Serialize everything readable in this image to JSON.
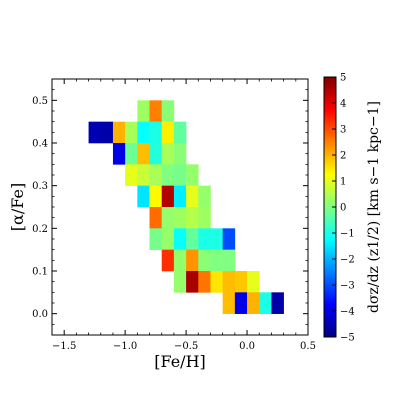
{
  "chart_data": {
    "type": "heatmap",
    "xlabel": "[Fe/H]",
    "ylabel": "[α/Fe]",
    "xlim": [
      -1.6,
      0.5
    ],
    "ylim": [
      -0.05,
      0.55
    ],
    "x_bin_width": 0.1,
    "y_bin_width": 0.05,
    "xticks": [
      -1.5,
      -1.0,
      -0.5,
      0.0,
      0.5
    ],
    "xtick_labels": [
      "−1.5",
      "−1.0",
      "−0.5",
      "0.0",
      "0.5"
    ],
    "yticks": [
      0.0,
      0.1,
      0.2,
      0.3,
      0.4,
      0.5
    ],
    "ytick_labels": [
      "0.0",
      "0.1",
      "0.2",
      "0.3",
      "0.4",
      "0.5"
    ],
    "colorbar": {
      "label": "dσz/dz (z1/2) [km s−1 kpc−1]",
      "range": [
        -5,
        5
      ],
      "ticks": [
        -5,
        -4,
        -3,
        -2,
        -1,
        0,
        1,
        2,
        3,
        4,
        5
      ],
      "tick_labels": [
        "−5",
        "−4",
        "−3",
        "−2",
        "−1",
        "0",
        "1",
        "2",
        "3",
        "4",
        "5"
      ],
      "colormap": "jet"
    },
    "cells": [
      {
        "feh": -0.85,
        "alpha": 0.475,
        "value": 0.3
      },
      {
        "feh": -0.75,
        "alpha": 0.475,
        "value": 2.5
      },
      {
        "feh": -0.65,
        "alpha": 0.475,
        "value": 0.1
      },
      {
        "feh": -1.25,
        "alpha": 0.425,
        "value": -4.5
      },
      {
        "feh": -1.15,
        "alpha": 0.425,
        "value": -4.6
      },
      {
        "feh": -1.05,
        "alpha": 0.425,
        "value": 2.0
      },
      {
        "feh": -0.95,
        "alpha": 0.425,
        "value": 0.4
      },
      {
        "feh": -0.85,
        "alpha": 0.425,
        "value": -1.2
      },
      {
        "feh": -0.75,
        "alpha": 0.425,
        "value": -1.0
      },
      {
        "feh": -0.65,
        "alpha": 0.425,
        "value": 1.4
      },
      {
        "feh": -0.55,
        "alpha": 0.425,
        "value": -0.3
      },
      {
        "feh": -1.05,
        "alpha": 0.375,
        "value": -4.0
      },
      {
        "feh": -0.95,
        "alpha": 0.375,
        "value": -0.2
      },
      {
        "feh": -0.85,
        "alpha": 0.375,
        "value": 1.9
      },
      {
        "feh": -0.75,
        "alpha": 0.375,
        "value": -0.9
      },
      {
        "feh": -0.65,
        "alpha": 0.375,
        "value": 0.4
      },
      {
        "feh": -0.55,
        "alpha": 0.375,
        "value": 0.1
      },
      {
        "feh": -0.95,
        "alpha": 0.325,
        "value": 1.0
      },
      {
        "feh": -0.85,
        "alpha": 0.325,
        "value": 0.7
      },
      {
        "feh": -0.75,
        "alpha": 0.325,
        "value": 0.4
      },
      {
        "feh": -0.65,
        "alpha": 0.325,
        "value": 0.0
      },
      {
        "feh": -0.55,
        "alpha": 0.325,
        "value": -0.1
      },
      {
        "feh": -0.45,
        "alpha": 0.325,
        "value": 0.2
      },
      {
        "feh": -0.85,
        "alpha": 0.275,
        "value": -1.5
      },
      {
        "feh": -0.75,
        "alpha": 0.275,
        "value": 1.3
      },
      {
        "feh": -0.65,
        "alpha": 0.275,
        "value": 4.5
      },
      {
        "feh": -0.55,
        "alpha": 0.275,
        "value": -1.4
      },
      {
        "feh": -0.45,
        "alpha": 0.275,
        "value": 1.0
      },
      {
        "feh": -0.35,
        "alpha": 0.275,
        "value": 0.2
      },
      {
        "feh": -0.75,
        "alpha": 0.225,
        "value": 2.7
      },
      {
        "feh": -0.65,
        "alpha": 0.225,
        "value": 0.2
      },
      {
        "feh": -0.55,
        "alpha": 0.225,
        "value": 0.3
      },
      {
        "feh": -0.45,
        "alpha": 0.225,
        "value": 0.5
      },
      {
        "feh": -0.35,
        "alpha": 0.225,
        "value": 0.3
      },
      {
        "feh": -0.75,
        "alpha": 0.175,
        "value": -0.1
      },
      {
        "feh": -0.65,
        "alpha": 0.175,
        "value": 0.2
      },
      {
        "feh": -0.55,
        "alpha": 0.175,
        "value": -1.2
      },
      {
        "feh": -0.45,
        "alpha": 0.175,
        "value": -0.3
      },
      {
        "feh": -0.35,
        "alpha": 0.175,
        "value": -1.0
      },
      {
        "feh": -0.25,
        "alpha": 0.175,
        "value": -1.0
      },
      {
        "feh": -0.15,
        "alpha": 0.175,
        "value": -3.0
      },
      {
        "feh": -0.65,
        "alpha": 0.125,
        "value": 3.3
      },
      {
        "feh": -0.55,
        "alpha": 0.125,
        "value": 0.2
      },
      {
        "feh": -0.45,
        "alpha": 0.125,
        "value": 2.3
      },
      {
        "feh": -0.35,
        "alpha": 0.125,
        "value": 0.1
      },
      {
        "feh": -0.25,
        "alpha": 0.125,
        "value": 0.0
      },
      {
        "feh": -0.15,
        "alpha": 0.125,
        "value": 0.0
      },
      {
        "feh": -0.55,
        "alpha": 0.075,
        "value": 0.2
      },
      {
        "feh": -0.45,
        "alpha": 0.075,
        "value": 4.6
      },
      {
        "feh": -0.35,
        "alpha": 0.075,
        "value": 2.6
      },
      {
        "feh": -0.25,
        "alpha": 0.075,
        "value": 1.5
      },
      {
        "feh": -0.15,
        "alpha": 0.075,
        "value": 1.9
      },
      {
        "feh": -0.05,
        "alpha": 0.075,
        "value": 1.8
      },
      {
        "feh": 0.05,
        "alpha": 0.075,
        "value": 1.0
      },
      {
        "feh": -0.15,
        "alpha": 0.025,
        "value": 1.9
      },
      {
        "feh": -0.05,
        "alpha": 0.025,
        "value": -4.0
      },
      {
        "feh": 0.05,
        "alpha": 0.025,
        "value": 2.0
      },
      {
        "feh": 0.15,
        "alpha": 0.025,
        "value": -1.0
      },
      {
        "feh": 0.25,
        "alpha": 0.025,
        "value": -4.6
      }
    ]
  }
}
